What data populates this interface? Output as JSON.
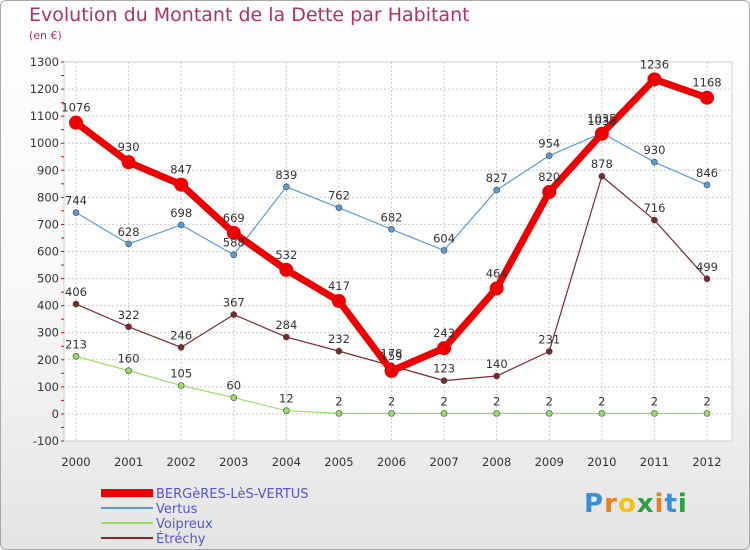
{
  "chart_data": {
    "type": "line",
    "title": "Evolution du Montant de la Dette par Habitant",
    "subtitle": "(en €)",
    "categories": [
      "2000",
      "2001",
      "2002",
      "2003",
      "2004",
      "2005",
      "2006",
      "2007",
      "2008",
      "2009",
      "2010",
      "2011",
      "2012"
    ],
    "ylim": [
      -100,
      1300
    ],
    "yticks": [
      -100,
      0,
      100,
      200,
      300,
      400,
      500,
      600,
      700,
      800,
      900,
      1000,
      1100,
      1200,
      1300
    ],
    "grid": true,
    "legend_position": "bottom-left",
    "series": [
      {
        "name": "BERGèRES-LèS-VERTUS",
        "color": "#ee0000",
        "values": [
          1076,
          930,
          847,
          669,
          532,
          417,
          159,
          243,
          464,
          820,
          1035,
          1236,
          1168
        ]
      },
      {
        "name": "Vertus",
        "color": "#5b9bd5",
        "values": [
          744,
          628,
          698,
          588,
          839,
          762,
          682,
          604,
          827,
          954,
          1038,
          930,
          846
        ]
      },
      {
        "name": "Voipreux",
        "color": "#99dd66",
        "values": [
          213,
          160,
          105,
          60,
          12,
          2,
          2,
          2,
          2,
          2,
          2,
          2,
          2
        ]
      },
      {
        "name": "Étréchy",
        "color": "#7a2a2a",
        "values": [
          406,
          322,
          246,
          367,
          284,
          232,
          178,
          123,
          140,
          231,
          878,
          716,
          499
        ]
      }
    ]
  },
  "logo": {
    "letters": [
      "P",
      "r",
      "o",
      "x",
      "i",
      "t",
      "i"
    ],
    "colors": [
      "#3a8fd8",
      "#e67e22",
      "#f1c40f",
      "#2e9e44",
      "#e67e22",
      "#3a8fd8",
      "#2e9e44"
    ]
  }
}
